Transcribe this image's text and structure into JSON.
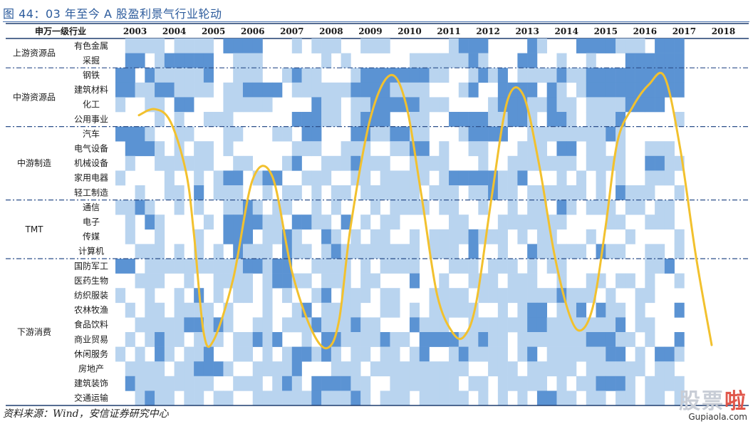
{
  "title": "图 44：03 年至今 A 股盈利景气行业轮动",
  "source": "资料来源：Wind，安信证券研究中心",
  "watermark": {
    "brand_a": "股票",
    "brand_b": "啦",
    "site": "Gupiaola.com"
  },
  "header": {
    "corner": "申万一级行业",
    "years": [
      "2003",
      "2004",
      "2005",
      "2006",
      "2007",
      "2008",
      "2009",
      "2010",
      "2011",
      "2012",
      "2013",
      "2014",
      "2015",
      "2016",
      "2017",
      "2018"
    ]
  },
  "colors": {
    "dark": "#5b93d3",
    "light": "#b9d4ef",
    "none": "#ffffff",
    "curve": "#f2c12e",
    "title": "#2c5b9c"
  },
  "chart_data": {
    "type": "heatmap",
    "title": "图 44：03 年至今 A 股盈利景气行业轮动",
    "x": [
      "2003",
      "2004",
      "2005",
      "2006",
      "2007",
      "2008",
      "2009",
      "2010",
      "2011",
      "2012",
      "2013",
      "2014",
      "2015",
      "2016",
      "2017",
      "2018"
    ],
    "groups": [
      {
        "name": "上游资源品",
        "industries": [
          "有色金属",
          "采掘"
        ]
      },
      {
        "name": "中游资源品",
        "industries": [
          "钢铁",
          "建筑材料",
          "化工",
          "公用事业"
        ]
      },
      {
        "name": "中游制造",
        "industries": [
          "汽车",
          "电气设备",
          "机械设备",
          "家用电器",
          "轻工制造"
        ]
      },
      {
        "name": "TMT",
        "industries": [
          "通信",
          "电子",
          "传媒",
          "计算机"
        ]
      },
      {
        "name": "下游消费",
        "industries": [
          "国防军工",
          "医药生物",
          "纺织服装",
          "农林牧渔",
          "食品饮料",
          "商业贸易",
          "休闲服务",
          "房地产",
          "建筑装饰",
          "交通运输"
        ]
      }
    ],
    "cells_per_year": 4,
    "legend_levels": {
      "0": "white",
      "1": "light",
      "2": "dark"
    },
    "rows": [
      "0111101111022220001011100111000000122200002100022221110222",
      "0220122222001110000001010000001111112100022001001000222222",
      "2202111112001110012110001222222211001212011112112222222222",
      "2211221111011222201111112222111100012002222021012222222222",
      "1001102200011111000021101122222111000012221121101111222200",
      "0000101001110000002221101222001100222211221022101112000001",
      "2221001100011000110220002211221100012222001111111121000000",
      "0222101011010000001110011100112201001100011102201101001110",
      "0100111111001100012001112111001111000100111111101111002211",
      "1000010010122012200111001101111101222221120001010101001110",
      "0010011020111001011010110111111011101121101111110102111001",
      "1121001010011210110010100010111101100100101102101110110110",
      "0102100001022221102211020101100000110001111111000011001110",
      "0100100010022201121002101011001011112111010110001000100001",
      "0011101010102111021101211111111011102001002111110211001101",
      "2201111111111221220011110101111000111011101011000000001120",
      "0011100100111101221101110110002001001110111001001101101001",
      "1001001020101101010012011101100011110111111112111010011000",
      "0101101111010001001201111001101011111001012201120211010002",
      "0011111221210011011121112110002111001111112211111112011000",
      "0101211011101121200102211112110222211211011111112221101002",
      "1010210112001101012212101101101200121111012011111122010221",
      "0111101122210011112000111011111111110011101111101111110110",
      "0211111111001110121022221100111111101101111101011222101111",
      "0012110110110011111121112101110111110101010221101101101101"
    ],
    "curve": {
      "name": "",
      "x": [
        2003.6,
        2004.0,
        2004.4,
        2004.8,
        2005.0,
        2005.25,
        2005.5,
        2006.0,
        2006.5,
        2007.0,
        2007.5,
        2008.0,
        2008.4,
        2008.7,
        2009.0,
        2009.5,
        2010.0,
        2010.4,
        2010.8,
        2011.2,
        2011.6,
        2011.9,
        2012.2,
        2012.6,
        2013.0,
        2013.4,
        2013.8,
        2014.2,
        2014.6,
        2014.9,
        2015.2,
        2015.5,
        2015.8,
        2016.2,
        2016.6,
        2017.0,
        2017.4,
        2017.8,
        2018.2
      ],
      "y": [
        0.62,
        0.66,
        0.58,
        0.25,
        -0.15,
        -0.8,
        -0.85,
        -0.45,
        0.2,
        0.22,
        -0.4,
        -0.78,
        -0.9,
        -0.72,
        -0.1,
        0.6,
        0.88,
        0.7,
        0.1,
        -0.55,
        -0.8,
        -0.82,
        -0.6,
        0.1,
        0.72,
        0.75,
        0.3,
        -0.3,
        -0.7,
        -0.78,
        -0.6,
        -0.1,
        0.45,
        0.68,
        0.82,
        0.87,
        0.4,
        -0.3,
        -0.88
      ]
    }
  },
  "groups_labels": {
    "g0": "上游资源品",
    "g1": "中游资源品",
    "g2": "中游制造",
    "g3": "TMT",
    "g4": "下游消费"
  }
}
